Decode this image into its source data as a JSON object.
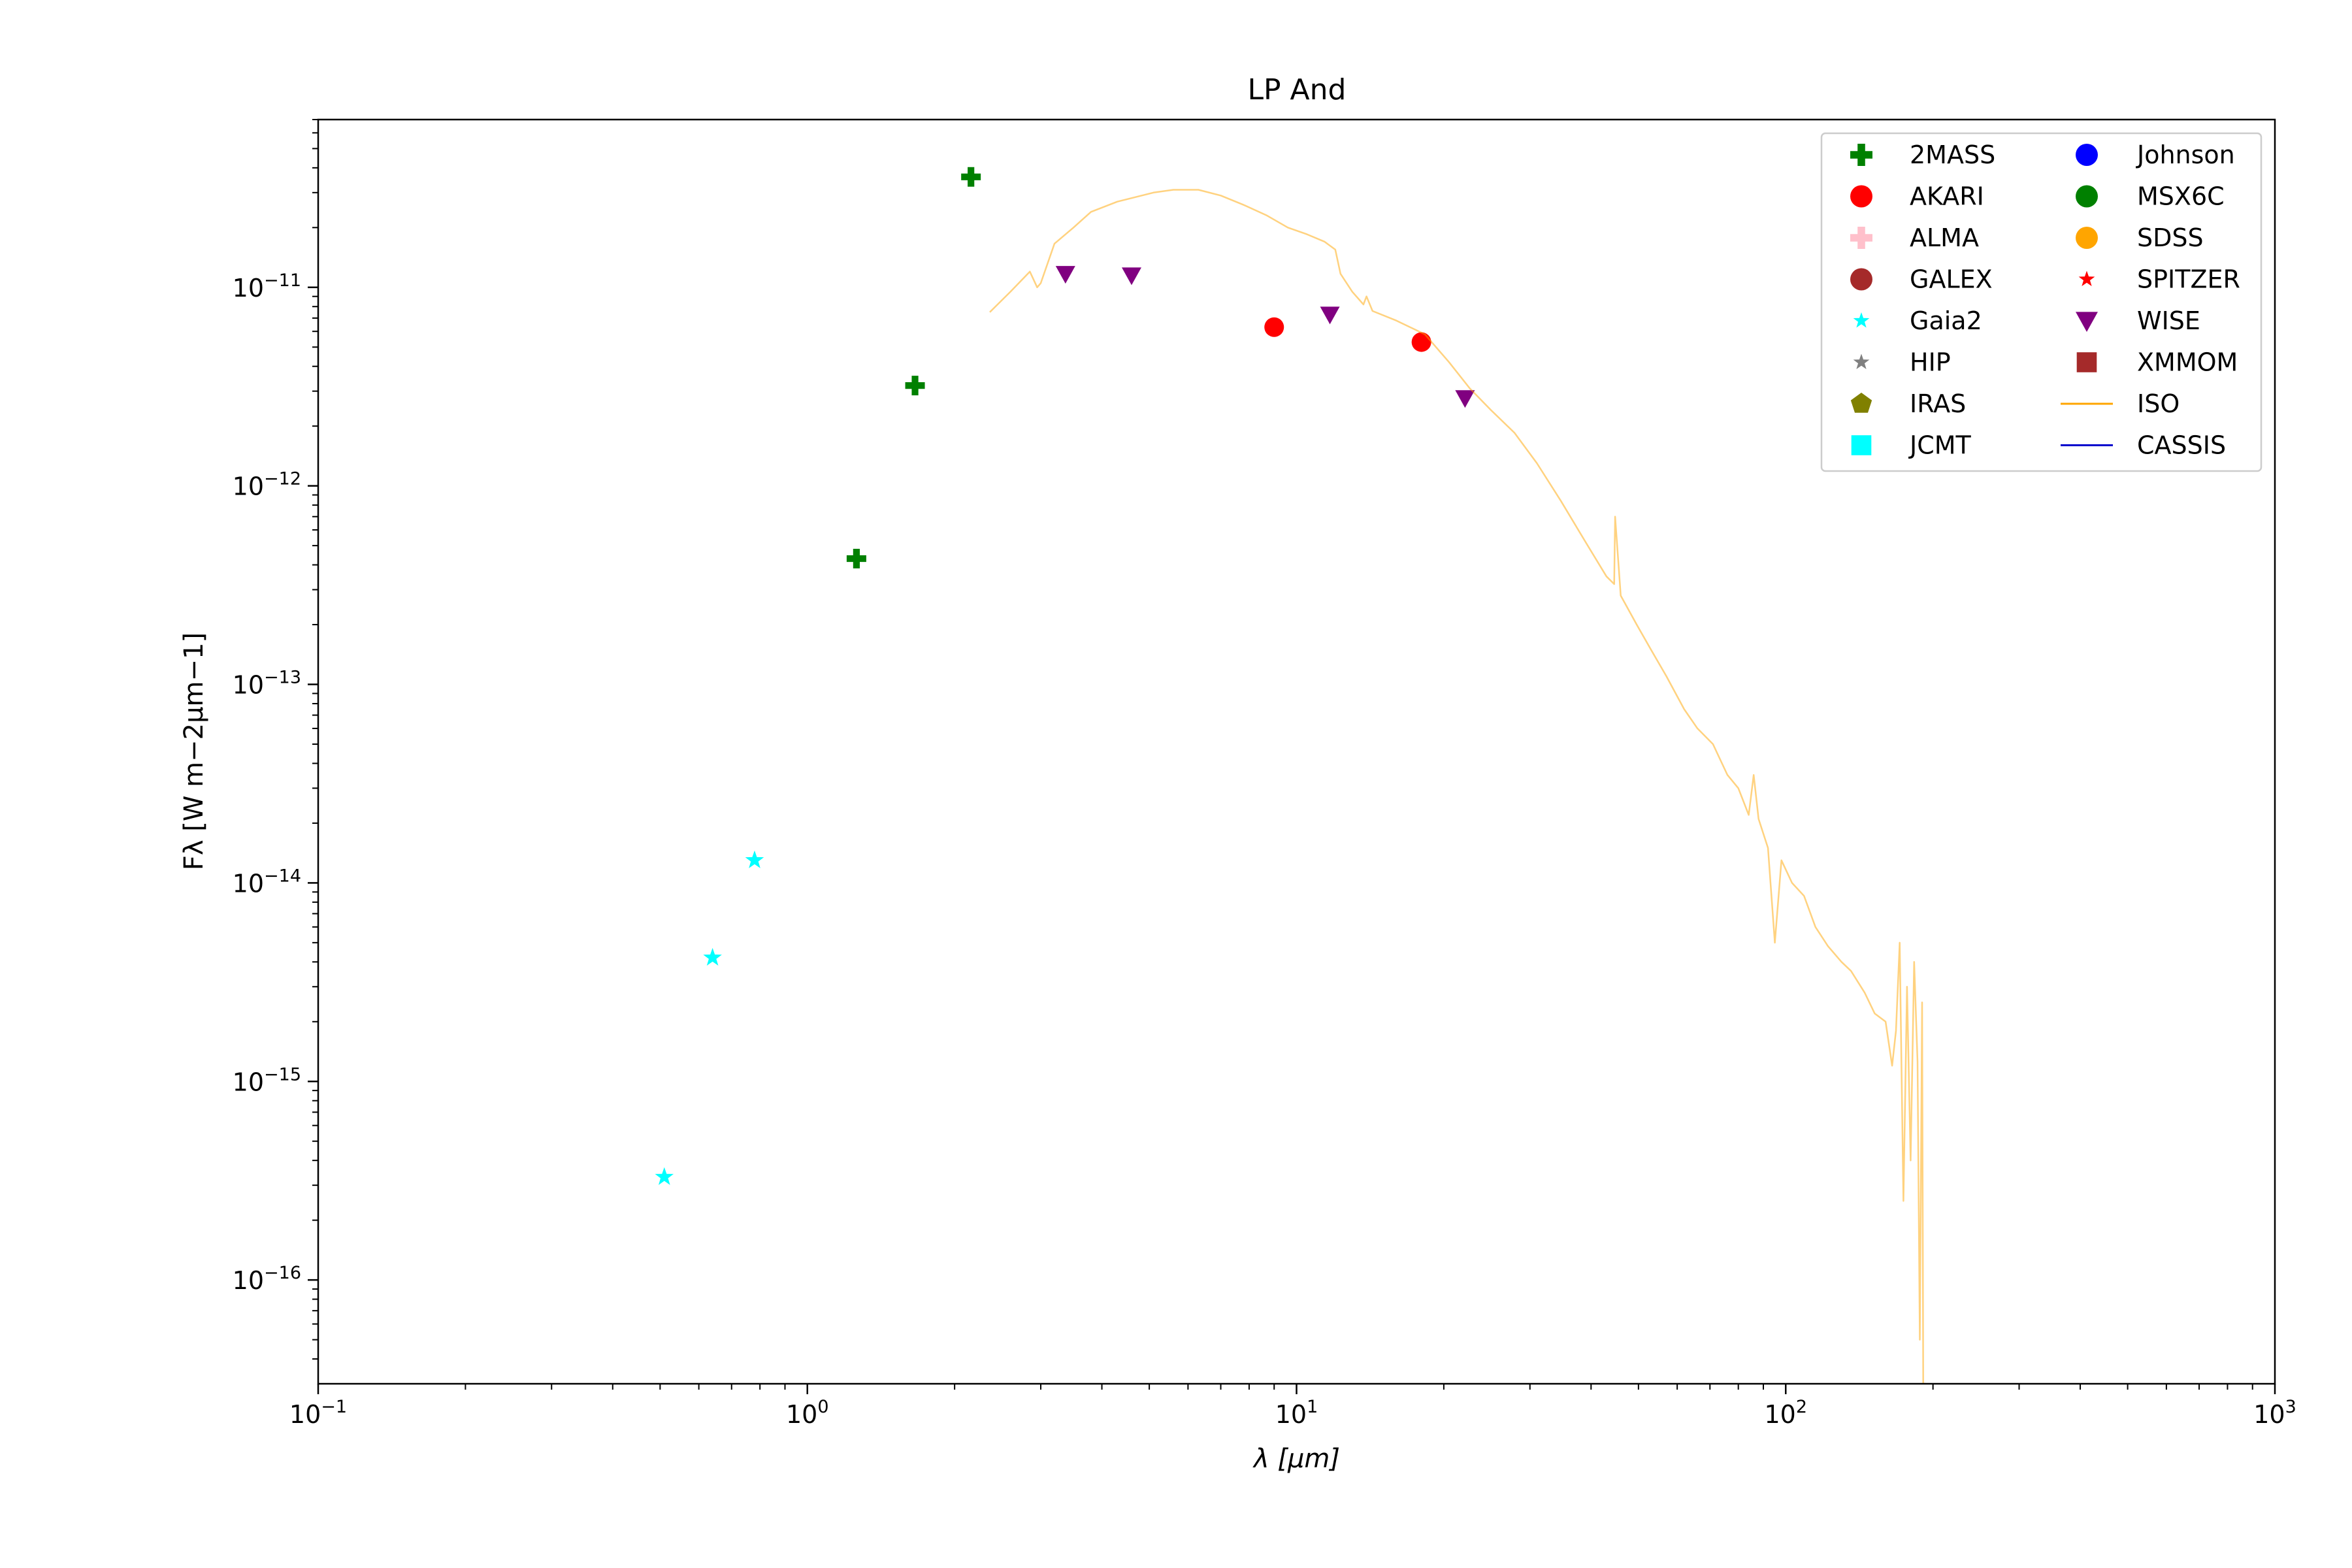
{
  "chart_data": {
    "type": "scatter",
    "title": "LP And",
    "xlabel": "λ [μm]",
    "ylabel": "Fλ [W m−2μm−1]",
    "xscale": "log",
    "yscale": "log",
    "xlim": [
      0.1,
      1000
    ],
    "ylim": [
      3e-17,
      7e-11
    ],
    "xticks": [
      {
        "value": 0.1,
        "label": "10−1"
      },
      {
        "value": 1,
        "label": "100"
      },
      {
        "value": 10,
        "label": "101"
      },
      {
        "value": 100,
        "label": "102"
      },
      {
        "value": 1000,
        "label": "103"
      }
    ],
    "yticks": [
      {
        "value": 1e-16,
        "label": "10−16"
      },
      {
        "value": 1e-15,
        "label": "10−15"
      },
      {
        "value": 1e-14,
        "label": "10−14"
      },
      {
        "value": 1e-13,
        "label": "10−13"
      },
      {
        "value": 1e-12,
        "label": "10−12"
      },
      {
        "value": 1e-11,
        "label": "10−11"
      }
    ],
    "legend": "upper right",
    "series": [
      {
        "name": "2MASS",
        "marker": "plus",
        "color": "#008000",
        "x": [
          1.26,
          1.66,
          2.16
        ],
        "values": [
          4.3e-13,
          3.2e-12,
          3.6e-11
        ]
      },
      {
        "name": "AKARI",
        "marker": "circle",
        "color": "#ff0000",
        "x": [
          9.0,
          18.0
        ],
        "values": [
          6.3e-12,
          5.3e-12
        ]
      },
      {
        "name": "ALMA",
        "marker": "plus",
        "color": "#ffc0cb",
        "x": [],
        "values": []
      },
      {
        "name": "GALEX",
        "marker": "circle",
        "color": "#a52a2a",
        "x": [],
        "values": []
      },
      {
        "name": "Gaia2",
        "marker": "star",
        "color": "#00ffff",
        "x": [
          0.51,
          0.64,
          0.78
        ],
        "values": [
          3.3e-16,
          4.2e-15,
          1.3e-14
        ]
      },
      {
        "name": "HIP",
        "marker": "star",
        "color": "#808080",
        "x": [],
        "values": []
      },
      {
        "name": "IRAS",
        "marker": "pentagon",
        "color": "#808000",
        "x": [],
        "values": []
      },
      {
        "name": "JCMT",
        "marker": "square",
        "color": "#00ffff",
        "x": [],
        "values": []
      },
      {
        "name": "Johnson",
        "marker": "circle",
        "color": "#0000ff",
        "x": [],
        "values": []
      },
      {
        "name": "MSX6C",
        "marker": "circle",
        "color": "#008000",
        "x": [],
        "values": []
      },
      {
        "name": "SDSS",
        "marker": "circle",
        "color": "#ffa500",
        "x": [],
        "values": []
      },
      {
        "name": "SPITZER",
        "marker": "star",
        "color": "#ff0000",
        "x": [],
        "values": []
      },
      {
        "name": "WISE",
        "marker": "triangle-down",
        "color": "#800080",
        "x": [
          3.37,
          4.6,
          11.7,
          22.1
        ],
        "values": [
          1.17e-11,
          1.15e-11,
          7.3e-12,
          2.77e-12
        ]
      },
      {
        "name": "XMMOM",
        "marker": "square",
        "color": "#a52a2a",
        "x": [],
        "values": []
      },
      {
        "name": "ISO",
        "type": "line",
        "color": "#ffa500",
        "alpha": 0.5,
        "x": [
          2.36,
          2.6,
          2.85,
          2.95,
          3.0,
          3.2,
          3.5,
          3.8,
          4.3,
          5.1,
          5.6,
          6.3,
          7.0,
          7.8,
          8.7,
          9.6,
          10.5,
          11.4,
          12.0,
          12.3,
          13.0,
          13.7,
          13.9,
          14.3,
          16.0,
          18.3,
          20.5,
          22.6,
          25.0,
          27.9,
          31.0,
          34.7,
          39.0,
          43.0,
          44.6,
          44.8,
          46.0,
          49.6,
          53.0,
          57.0,
          62.0,
          66.0,
          71.0,
          76.0,
          80.0,
          84.0,
          86.0,
          88.0,
          92.0,
          95.0,
          98.0,
          103,
          109,
          115,
          122,
          130,
          136,
          145,
          152,
          160,
          165,
          168,
          171,
          174,
          177,
          180,
          183,
          186,
          188,
          190,
          191,
          193
        ],
        "values": [
          7.5e-12,
          9.5e-12,
          1.2e-11,
          1e-11,
          1.05e-11,
          1.66e-11,
          2e-11,
          2.4e-11,
          2.7e-11,
          3e-11,
          3.1e-11,
          3.1e-11,
          2.9e-11,
          2.6e-11,
          2.3e-11,
          2e-11,
          1.85e-11,
          1.7e-11,
          1.55e-11,
          1.17e-11,
          9.5e-12,
          8.2e-12,
          9e-12,
          7.6e-12,
          6.8e-12,
          5.8e-12,
          4.2e-12,
          3.1e-12,
          2.4e-12,
          1.85e-12,
          1.3e-12,
          8.4e-13,
          5.2e-13,
          3.5e-13,
          3.2e-13,
          7e-13,
          2.8e-13,
          2e-13,
          1.5e-13,
          1.1e-13,
          7.5e-14,
          6e-14,
          5e-14,
          3.5e-14,
          3e-14,
          2.2e-14,
          3.5e-14,
          2.1e-14,
          1.5e-14,
          5e-15,
          1.3e-14,
          1e-14,
          8.6e-15,
          6e-15,
          4.8e-15,
          4e-15,
          3.6e-15,
          2.8e-15,
          2.2e-15,
          2e-15,
          1.2e-15,
          1.8e-15,
          5e-15,
          2.5e-16,
          3e-15,
          4e-16,
          4e-15,
          1.26e-15,
          5e-17,
          2.5e-15,
          3e-17,
          3e-17
        ]
      },
      {
        "name": "CASSIS",
        "type": "line",
        "color": "#0000cd",
        "x": [],
        "values": []
      }
    ]
  }
}
